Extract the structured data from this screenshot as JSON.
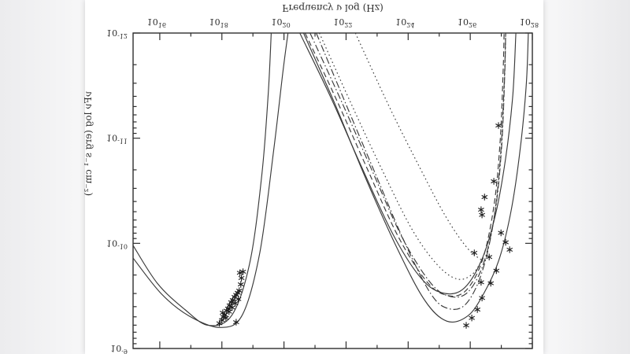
{
  "viewer": {
    "background_note": "image viewer canvas, figure shown vertically mirrored",
    "page_color": "#ffffff",
    "ink_color": "#2e2e2e"
  },
  "chart_data": {
    "type": "line",
    "title": "",
    "xlabel": "Frequency ν log (Hz)",
    "ylabel": "νFν log (erg s⁻¹ cm⁻²)",
    "x_tick_exponents": [
      16,
      18,
      20,
      22,
      24,
      26,
      28
    ],
    "x_minor_exponents": [
      17,
      19,
      21,
      23,
      25,
      27
    ],
    "y_tick_exponents": [
      -12,
      -11,
      -10,
      -9
    ],
    "xlim": [
      15.14,
      28.0
    ],
    "ylim": [
      -12.0,
      -9.0
    ],
    "grid": false,
    "legend": "none",
    "orientation": "vertically-mirrored",
    "series": [
      {
        "name": "synchrotron-model-1",
        "style": "solid",
        "points": [
          [
            15.14,
            -9.98
          ],
          [
            15.92,
            -9.62
          ],
          [
            16.81,
            -9.37
          ],
          [
            17.57,
            -9.22
          ],
          [
            18.33,
            -9.32
          ],
          [
            18.91,
            -9.83
          ],
          [
            19.29,
            -10.66
          ],
          [
            19.49,
            -11.41
          ],
          [
            19.59,
            -12.0
          ]
        ]
      },
      {
        "name": "synchrotron-model-2",
        "style": "solid",
        "points": [
          [
            15.14,
            -9.86
          ],
          [
            16.05,
            -9.52
          ],
          [
            16.94,
            -9.31
          ],
          [
            17.95,
            -9.2
          ],
          [
            18.66,
            -9.32
          ],
          [
            19.22,
            -9.91
          ],
          [
            19.67,
            -10.89
          ],
          [
            19.97,
            -11.64
          ],
          [
            20.13,
            -12.0
          ]
        ]
      },
      {
        "name": "ic-solid-upper",
        "style": "solid",
        "points": [
          [
            20.51,
            -12.0
          ],
          [
            21.49,
            -11.4
          ],
          [
            22.51,
            -10.72
          ],
          [
            23.52,
            -10.08
          ],
          [
            24.41,
            -9.67
          ],
          [
            25.09,
            -9.53
          ],
          [
            25.75,
            -9.56
          ],
          [
            26.35,
            -9.83
          ],
          [
            26.81,
            -10.27
          ],
          [
            27.14,
            -10.81
          ],
          [
            27.37,
            -11.41
          ],
          [
            27.47,
            -12.0
          ]
        ]
      },
      {
        "name": "ic-dashed",
        "style": "dashed",
        "points": [
          [
            20.68,
            -12.0
          ],
          [
            21.67,
            -11.38
          ],
          [
            22.68,
            -10.71
          ],
          [
            23.67,
            -10.07
          ],
          [
            24.56,
            -9.65
          ],
          [
            25.19,
            -9.51
          ],
          [
            25.82,
            -9.54
          ],
          [
            26.38,
            -9.83
          ],
          [
            26.76,
            -10.35
          ],
          [
            26.96,
            -10.96
          ],
          [
            27.06,
            -11.64
          ],
          [
            27.09,
            -12.0
          ]
        ]
      },
      {
        "name": "ic-dot-dashed-upper",
        "style": "dashdot",
        "points": [
          [
            20.84,
            -12.0
          ],
          [
            21.82,
            -11.37
          ],
          [
            22.84,
            -10.69
          ],
          [
            23.8,
            -10.06
          ],
          [
            24.68,
            -9.64
          ],
          [
            25.29,
            -9.5
          ],
          [
            25.9,
            -9.53
          ],
          [
            26.43,
            -9.81
          ],
          [
            26.81,
            -10.32
          ],
          [
            27.01,
            -10.92
          ],
          [
            27.11,
            -11.6
          ],
          [
            27.14,
            -12.0
          ]
        ]
      },
      {
        "name": "ic-dot-dashed-lower",
        "style": "dashdot",
        "points": [
          [
            21.04,
            -12.0
          ],
          [
            22.0,
            -11.32
          ],
          [
            22.96,
            -10.65
          ],
          [
            23.9,
            -10.0
          ],
          [
            24.73,
            -9.52
          ],
          [
            25.29,
            -9.38
          ],
          [
            25.85,
            -9.42
          ],
          [
            26.35,
            -9.7
          ],
          [
            26.73,
            -10.17
          ],
          [
            26.96,
            -10.77
          ],
          [
            27.09,
            -11.49
          ],
          [
            27.14,
            -12.0
          ]
        ]
      },
      {
        "name": "ic-solid-lower",
        "style": "solid",
        "points": [
          [
            20.63,
            -12.0
          ],
          [
            21.62,
            -11.34
          ],
          [
            22.63,
            -10.62
          ],
          [
            23.65,
            -9.95
          ],
          [
            24.53,
            -9.46
          ],
          [
            25.24,
            -9.26
          ],
          [
            25.92,
            -9.31
          ],
          [
            26.43,
            -9.52
          ],
          [
            26.91,
            -9.83
          ],
          [
            27.29,
            -10.27
          ],
          [
            27.59,
            -10.85
          ],
          [
            27.8,
            -11.49
          ],
          [
            27.87,
            -12.0
          ]
        ]
      },
      {
        "name": "absorbed-dotted-1",
        "style": "dotted",
        "points": [
          [
            21.14,
            -12.0
          ],
          [
            22.13,
            -11.35
          ],
          [
            23.19,
            -10.68
          ],
          [
            24.15,
            -10.12
          ],
          [
            24.96,
            -9.79
          ],
          [
            25.59,
            -9.66
          ],
          [
            26.08,
            -9.71
          ],
          [
            26.41,
            -9.86
          ]
        ]
      },
      {
        "name": "absorbed-dotted-2",
        "style": "dotted",
        "points": [
          [
            22.3,
            -12.0
          ],
          [
            23.39,
            -11.3
          ],
          [
            24.41,
            -10.7
          ],
          [
            25.22,
            -10.25
          ],
          [
            25.92,
            -9.95
          ],
          [
            26.43,
            -9.83
          ]
        ]
      }
    ],
    "scatter_groups": [
      {
        "name": "xray-data-points",
        "marker": "asterisk",
        "points": [
          [
            17.92,
            -9.24
          ],
          [
            18.0,
            -9.27
          ],
          [
            18.05,
            -9.3
          ],
          [
            18.03,
            -9.34
          ],
          [
            18.1,
            -9.32
          ],
          [
            18.15,
            -9.36
          ],
          [
            18.13,
            -9.29
          ],
          [
            18.2,
            -9.38
          ],
          [
            18.25,
            -9.41
          ],
          [
            18.23,
            -9.35
          ],
          [
            18.3,
            -9.44
          ],
          [
            18.35,
            -9.46
          ],
          [
            18.33,
            -9.39
          ],
          [
            18.41,
            -9.49
          ],
          [
            18.46,
            -9.51
          ],
          [
            18.43,
            -9.43
          ],
          [
            18.51,
            -9.53
          ],
          [
            18.56,
            -9.55
          ],
          [
            18.53,
            -9.47
          ],
          [
            18.61,
            -9.61
          ],
          [
            18.63,
            -9.67
          ],
          [
            18.68,
            -9.73
          ],
          [
            18.58,
            -9.72
          ],
          [
            18.46,
            -9.25
          ]
        ]
      },
      {
        "name": "tev-data-points",
        "marker": "asterisk",
        "points": [
          [
            25.87,
            -9.22
          ],
          [
            26.05,
            -9.29
          ],
          [
            26.23,
            -9.37
          ],
          [
            26.38,
            -9.48
          ],
          [
            26.35,
            -9.63
          ],
          [
            26.66,
            -9.62
          ],
          [
            26.84,
            -9.74
          ],
          [
            26.61,
            -9.87
          ],
          [
            26.13,
            -9.91
          ],
          [
            26.99,
            -10.1
          ],
          [
            27.14,
            -10.01
          ],
          [
            26.46,
            -10.44
          ],
          [
            26.35,
            -10.32
          ],
          [
            26.38,
            -10.27
          ],
          [
            26.76,
            -10.59
          ],
          [
            26.91,
            -11.12
          ],
          [
            27.27,
            -9.94
          ]
        ]
      }
    ]
  }
}
